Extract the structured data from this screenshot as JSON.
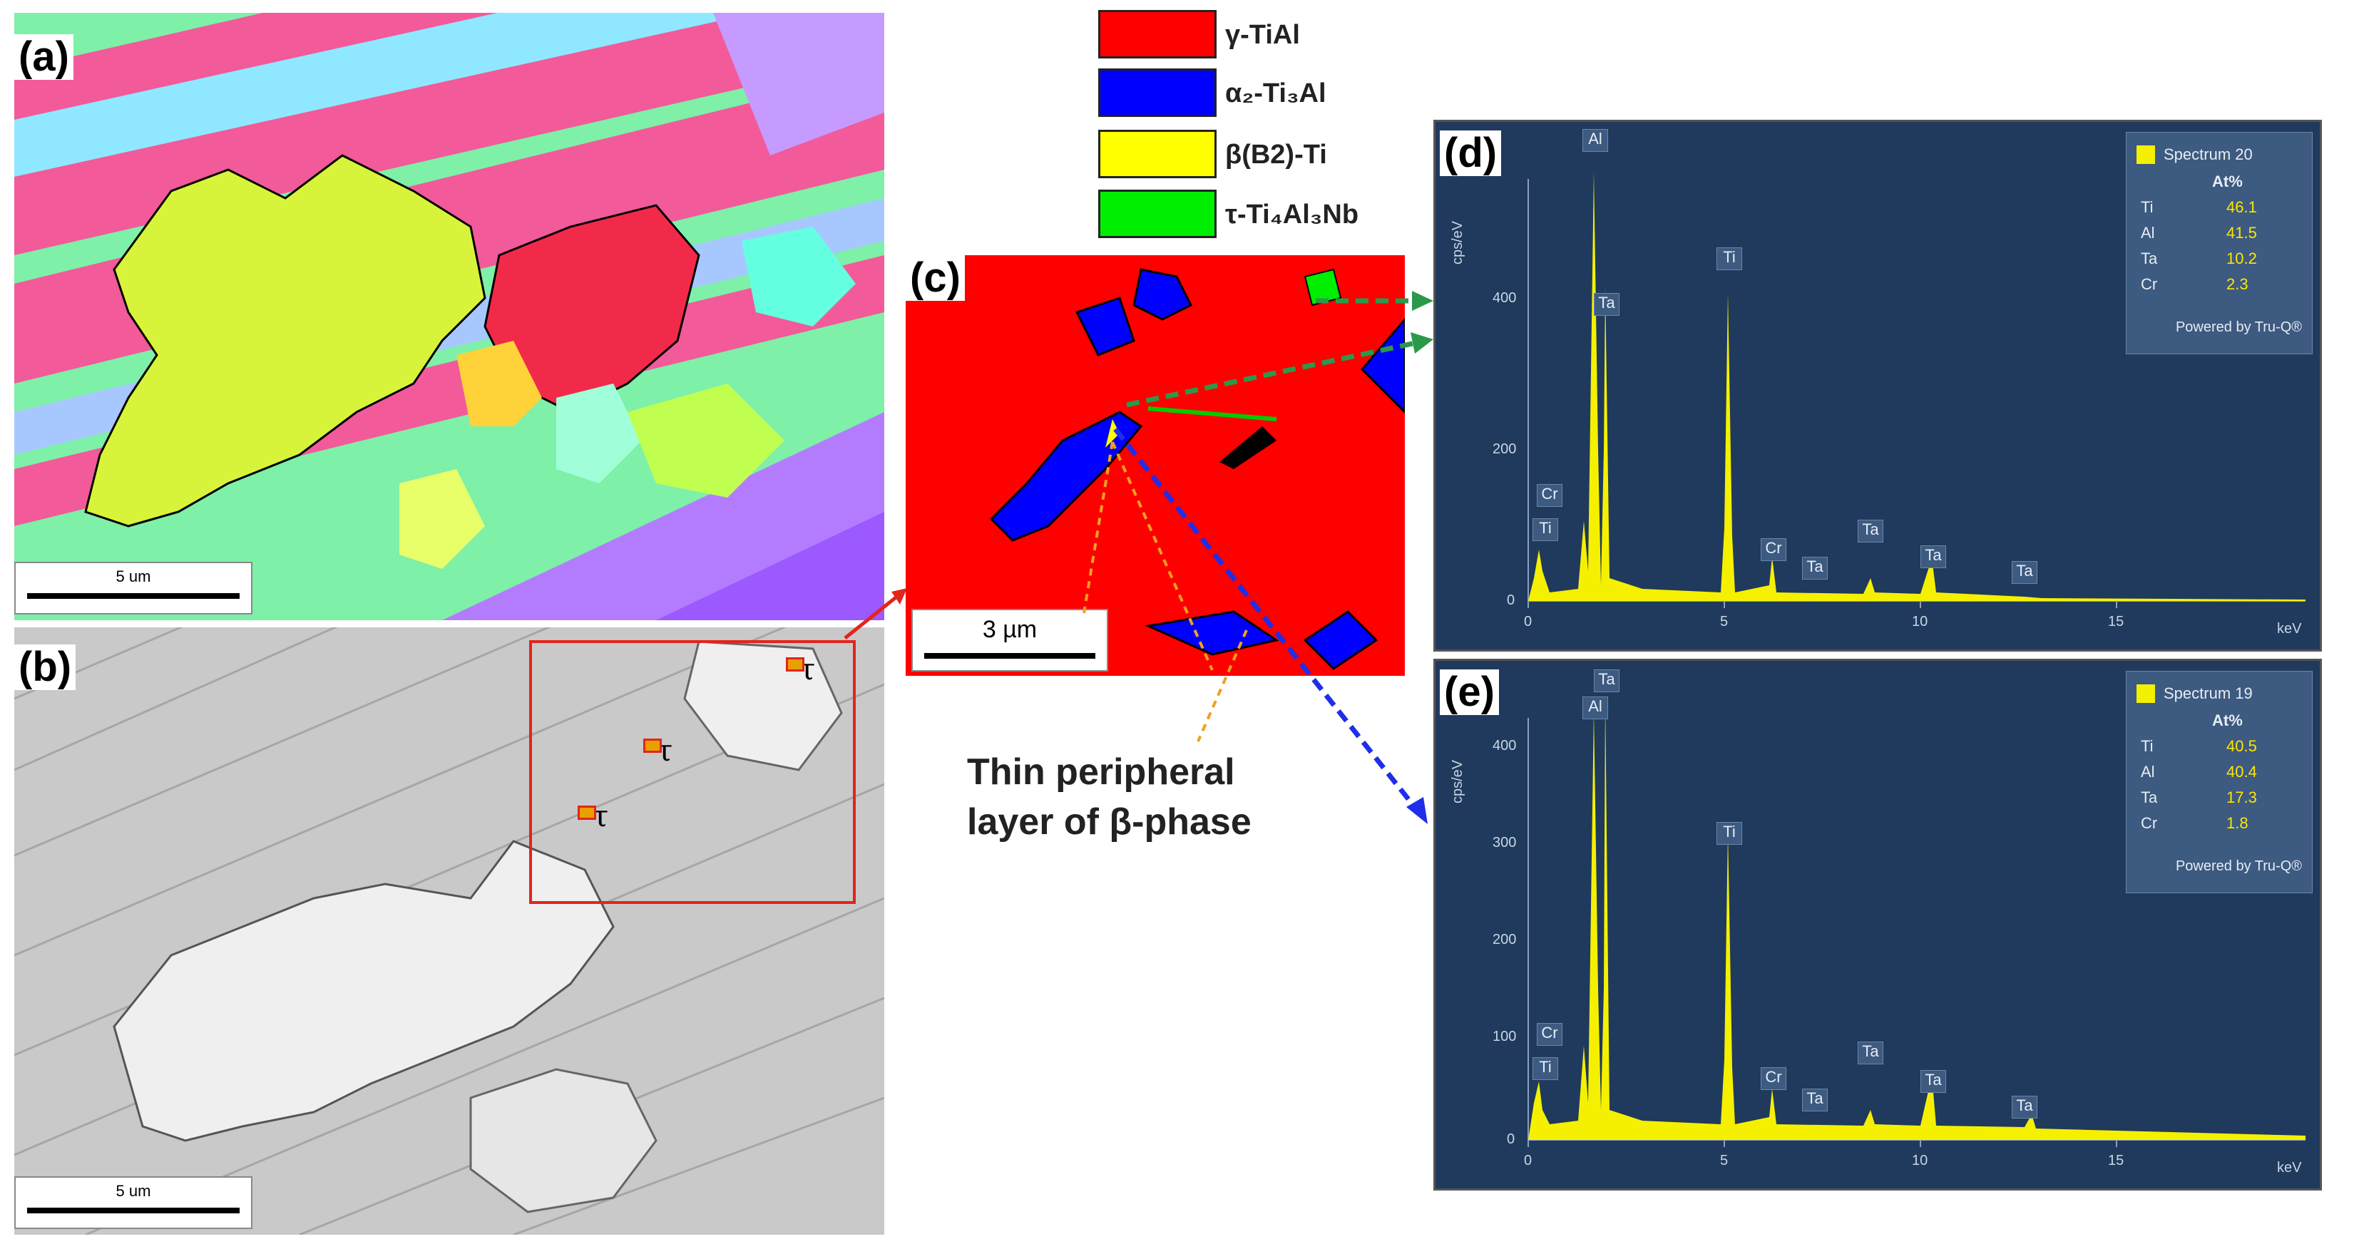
{
  "panels": {
    "a": {
      "label": "(a)",
      "scale": "5 um"
    },
    "b": {
      "label": "(b)",
      "scale": "5 um",
      "tau_markers": [
        "τ",
        "τ",
        "τ"
      ]
    },
    "c": {
      "label": "(c)",
      "scale": "3 µm"
    },
    "d": {
      "label": "(d)"
    },
    "e": {
      "label": "(e)"
    }
  },
  "legend": [
    {
      "label_main": "γ-TiAl",
      "color": "#ff0000"
    },
    {
      "label_main": "α₂-Ti₃Al",
      "color": "#0000ff"
    },
    {
      "label_main": "β(B2)-Ti",
      "color": "#ffff00"
    },
    {
      "label_main": "τ-Ti₄Al₃Nb",
      "color": "#00ee00"
    }
  ],
  "caption": {
    "line1": "Thin peripheral",
    "line2": "layer of β-phase"
  },
  "spectra": [
    {
      "title": "Spectrum 20",
      "header": "At%",
      "rows": [
        {
          "el": "Ti",
          "val": "46.1"
        },
        {
          "el": "Al",
          "val": "41.5"
        },
        {
          "el": "Ta",
          "val": "10.2"
        },
        {
          "el": "Cr",
          "val": "2.3"
        }
      ],
      "footer": "Powered by Tru-Q®",
      "ylabel": "cps/eV",
      "xunit": "keV",
      "yticks": [
        "400",
        "200",
        "0"
      ],
      "xticks": [
        "0",
        "5",
        "10",
        "15"
      ],
      "peak_labels": [
        "Al",
        "Ta",
        "Ti",
        "Cr",
        "Ti",
        "Cr",
        "Ta",
        "Ta",
        "Ta",
        "Ta"
      ]
    },
    {
      "title": "Spectrum 19",
      "header": "At%",
      "rows": [
        {
          "el": "Ti",
          "val": "40.5"
        },
        {
          "el": "Al",
          "val": "40.4"
        },
        {
          "el": "Ta",
          "val": "17.3"
        },
        {
          "el": "Cr",
          "val": "1.8"
        }
      ],
      "footer": "Powered by Tru-Q®",
      "ylabel": "cps/eV",
      "xunit": "keV",
      "yticks": [
        "400",
        "300",
        "200",
        "100",
        "0"
      ],
      "xticks": [
        "0",
        "5",
        "10",
        "15"
      ],
      "peak_labels": [
        "Ta",
        "Al",
        "Ti",
        "Cr",
        "Ti",
        "Cr",
        "Ta",
        "Ta",
        "Ta",
        "Ta"
      ]
    }
  ],
  "colors": {
    "spectrum_bg": "#1f3a5c",
    "spectrum_fill": "#f5f000",
    "gamma": "#ff0000",
    "alpha2": "#0000ff",
    "beta": "#ffff00",
    "tau": "#00ee00"
  }
}
